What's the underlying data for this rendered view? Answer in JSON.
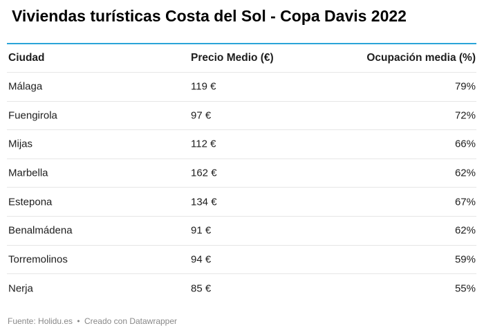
{
  "title": "Viviendas turísticas Costa del Sol - Copa Davis 2022",
  "chart_data": {
    "type": "table",
    "columns": [
      "Ciudad",
      "Precio Medio (€)",
      "Ocupación media (%)"
    ],
    "rows": [
      {
        "ciudad": "Málaga",
        "precio": "119 €",
        "ocupacion": "79%"
      },
      {
        "ciudad": "Fuengirola",
        "precio": "97 €",
        "ocupacion": "72%"
      },
      {
        "ciudad": "Mijas",
        "precio": "112 €",
        "ocupacion": "66%"
      },
      {
        "ciudad": "Marbella",
        "precio": "162 €",
        "ocupacion": "62%"
      },
      {
        "ciudad": "Estepona",
        "precio": "134 €",
        "ocupacion": "67%"
      },
      {
        "ciudad": "Benalmádena",
        "precio": "91 €",
        "ocupacion": "62%"
      },
      {
        "ciudad": "Torremolinos",
        "precio": "94 €",
        "ocupacion": "59%"
      },
      {
        "ciudad": "Nerja",
        "precio": "85 €",
        "ocupacion": "55%"
      }
    ]
  },
  "footer": {
    "source": "Fuente: Holidu.es",
    "separator": "•",
    "credit": "Creado con Datawrapper"
  },
  "colors": {
    "rule": "#2aa4d8",
    "row_divider": "#e6e6e6",
    "footer_text": "#888888"
  }
}
